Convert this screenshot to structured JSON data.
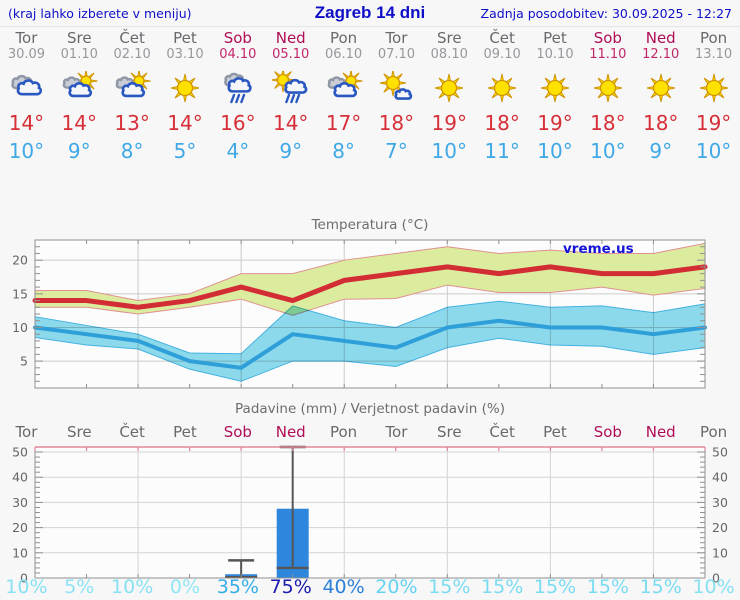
{
  "header": {
    "left_note": "(kraj lahko izberete v meniju)",
    "title": "Zagreb 14 dni",
    "updated": "Zadnja posodobitev: 30.09.2025 - 12:27"
  },
  "colors": {
    "accent_blue": "#0f0fc8",
    "weekend": "#b00d56",
    "high_temp": "#d62f38",
    "low_temp": "#3fa8e6",
    "bar_blue": "#2e87dc"
  },
  "days": [
    {
      "name": "Tor",
      "date": "30.09",
      "weekend": false,
      "icon": "cloudy",
      "high": "14°",
      "low": "10°",
      "prob": "10%",
      "prob_color": "#87e1f3"
    },
    {
      "name": "Sre",
      "date": "01.10",
      "weekend": false,
      "icon": "partly-cloudy",
      "high": "14°",
      "low": "9°",
      "prob": "5%",
      "prob_color": "#8ce4f5"
    },
    {
      "name": "Čet",
      "date": "02.10",
      "weekend": false,
      "icon": "partly-cloudy",
      "high": "13°",
      "low": "8°",
      "prob": "10%",
      "prob_color": "#87e1f3"
    },
    {
      "name": "Pet",
      "date": "03.10",
      "weekend": false,
      "icon": "sunny",
      "high": "14°",
      "low": "5°",
      "prob": "0%",
      "prob_color": "#90e6f6"
    },
    {
      "name": "Sob",
      "date": "04.10",
      "weekend": true,
      "icon": "rain",
      "high": "16°",
      "low": "4°",
      "prob": "35%",
      "prob_color": "#35aee8"
    },
    {
      "name": "Ned",
      "date": "05.10",
      "weekend": true,
      "icon": "sun-rain",
      "high": "14°",
      "low": "9°",
      "prob": "75%",
      "prob_color": "#1b1bad"
    },
    {
      "name": "Pon",
      "date": "06.10",
      "weekend": false,
      "icon": "partly-cloudy",
      "high": "17°",
      "low": "8°",
      "prob": "40%",
      "prob_color": "#2b7fd8"
    },
    {
      "name": "Tor",
      "date": "07.10",
      "weekend": false,
      "icon": "mostly-sunny",
      "high": "18°",
      "low": "7°",
      "prob": "20%",
      "prob_color": "#64d2f0"
    },
    {
      "name": "Sre",
      "date": "08.10",
      "weekend": false,
      "icon": "sunny",
      "high": "19°",
      "low": "10°",
      "prob": "15%",
      "prob_color": "#79dcf2"
    },
    {
      "name": "Čet",
      "date": "09.10",
      "weekend": false,
      "icon": "sunny",
      "high": "18°",
      "low": "11°",
      "prob": "15%",
      "prob_color": "#79dcf2"
    },
    {
      "name": "Pet",
      "date": "10.10",
      "weekend": false,
      "icon": "sunny",
      "high": "19°",
      "low": "10°",
      "prob": "15%",
      "prob_color": "#79dcf2"
    },
    {
      "name": "Sob",
      "date": "11.10",
      "weekend": true,
      "icon": "sunny",
      "high": "18°",
      "low": "10°",
      "prob": "15%",
      "prob_color": "#79dcf2"
    },
    {
      "name": "Ned",
      "date": "12.10",
      "weekend": true,
      "icon": "sunny",
      "high": "18°",
      "low": "9°",
      "prob": "15%",
      "prob_color": "#79dcf2"
    },
    {
      "name": "Pon",
      "date": "13.10",
      "weekend": false,
      "icon": "sunny",
      "high": "19°",
      "low": "10°",
      "prob": "10%",
      "prob_color": "#87e1f3"
    }
  ],
  "chart_data": [
    {
      "type": "line",
      "title": "Temperatura (°C)",
      "watermark": "vreme.us",
      "categories": [
        "Tor",
        "Sre",
        "Čet",
        "Pet",
        "Sob",
        "Ned",
        "Pon",
        "Tor",
        "Sre",
        "Čet",
        "Pet",
        "Sob",
        "Ned",
        "Pon"
      ],
      "ylim": [
        1,
        23
      ],
      "yticks": [
        5,
        10,
        15,
        20
      ],
      "grid": true,
      "series": [
        {
          "name": "max temperatura",
          "color": "#d22c34",
          "width": 5,
          "values": [
            14,
            14,
            13,
            14,
            16,
            14,
            17,
            18,
            19,
            18,
            19,
            18,
            18,
            19
          ]
        },
        {
          "name": "min temperatura",
          "color": "#2f9fd9",
          "width": 4,
          "values": [
            10,
            9,
            8,
            5,
            4,
            9,
            8,
            7,
            10,
            11,
            10,
            10,
            9,
            10
          ]
        }
      ],
      "bands": [
        {
          "name": "max razpon",
          "fill": "#dcec9e",
          "edge": "#e09090",
          "upper": [
            15.5,
            15.5,
            14,
            15,
            18,
            18,
            20,
            21,
            22,
            21,
            21.5,
            21,
            21,
            22.5
          ],
          "lower": [
            13,
            13,
            12,
            13,
            14.2,
            11.8,
            14.2,
            14.3,
            16.3,
            15.2,
            15.2,
            16,
            14.8,
            15.8
          ]
        },
        {
          "name": "min razpon",
          "fill": "#8edcee",
          "edge": "#44b4e4",
          "upper": [
            11.6,
            10.3,
            9,
            6.2,
            6.1,
            13.2,
            11,
            10,
            13,
            13.9,
            13,
            13.2,
            12.2,
            13.5
          ],
          "lower": [
            8.5,
            7.4,
            6.8,
            3.8,
            2,
            5,
            5,
            4.2,
            7,
            8.4,
            7.4,
            7.2,
            6,
            7
          ]
        }
      ]
    },
    {
      "type": "bar",
      "title": "Padavine (mm) / Verjetnost padavin (%)",
      "categories": [
        "Tor",
        "Sre",
        "Čet",
        "Pet",
        "Sob",
        "Ned",
        "Pon",
        "Tor",
        "Sre",
        "Čet",
        "Pet",
        "Sob",
        "Ned",
        "Pon"
      ],
      "values": [
        0,
        0,
        0,
        0,
        1.5,
        27.5,
        0,
        0,
        0,
        0,
        0,
        0,
        0,
        0
      ],
      "whiskers": [
        null,
        null,
        null,
        null,
        {
          "low": 0.3,
          "high": 7
        },
        {
          "low": 4,
          "high": 52
        },
        null,
        null,
        null,
        null,
        null,
        null,
        null,
        null
      ],
      "probabilities": [
        "10%",
        "5%",
        "10%",
        "0%",
        "35%",
        "75%",
        "40%",
        "20%",
        "15%",
        "15%",
        "15%",
        "15%",
        "15%",
        "10%"
      ],
      "bar_color": "#2e87dc",
      "ylim": [
        0,
        52
      ],
      "yticks": [
        0,
        10,
        20,
        30,
        40,
        50
      ],
      "grid": true
    }
  ]
}
